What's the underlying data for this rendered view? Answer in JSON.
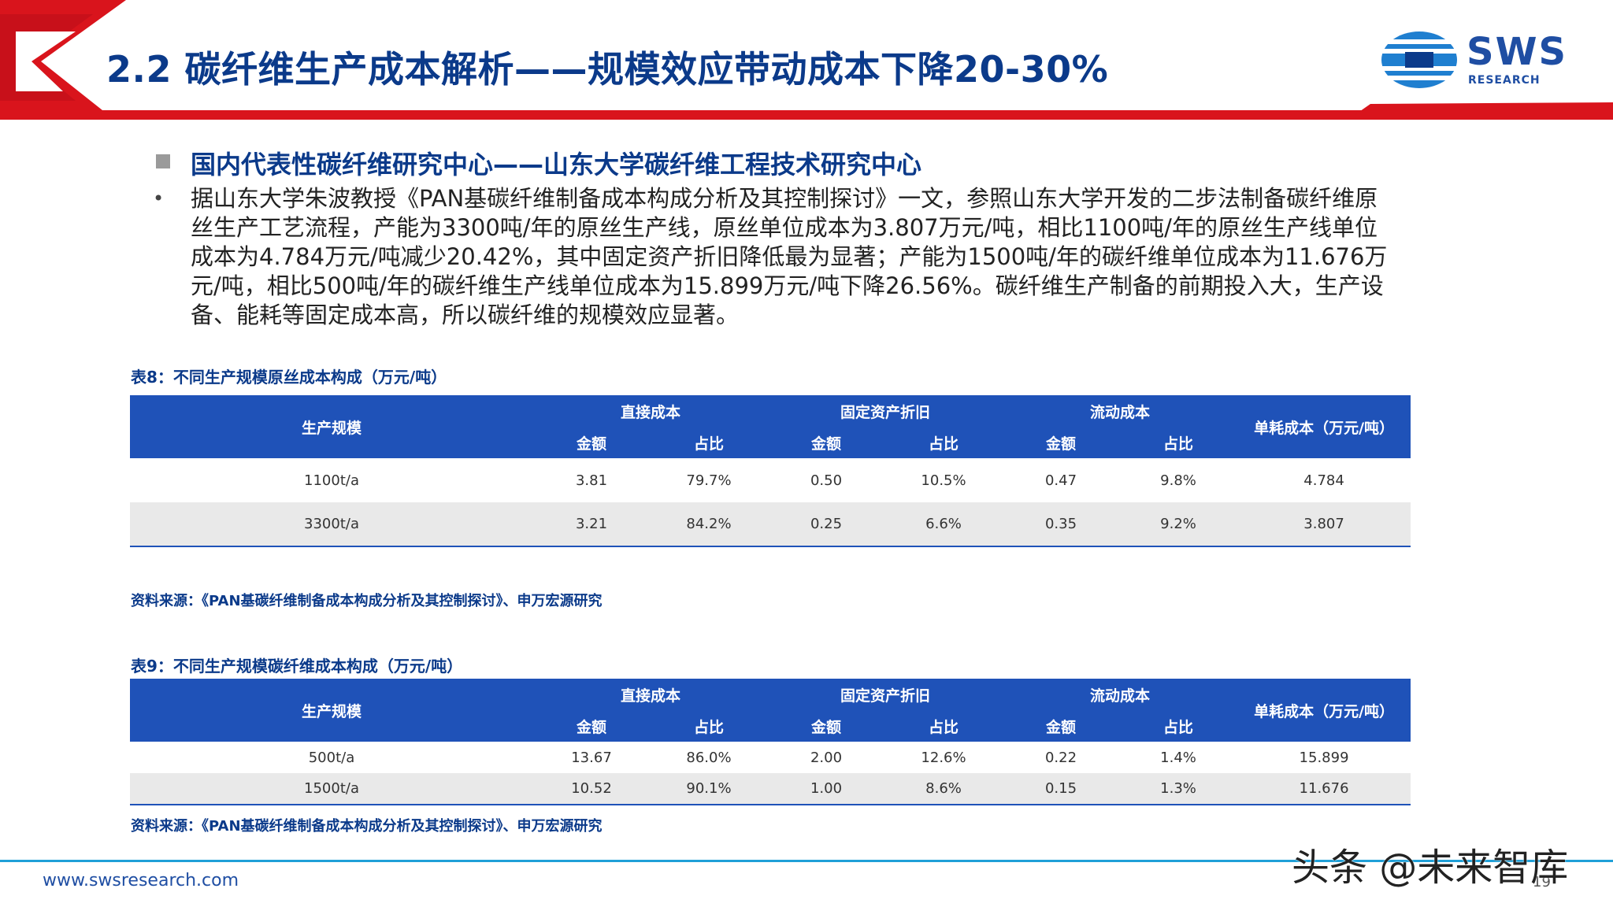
{
  "header": {
    "title": "2.2 碳纤维生产成本解析——规模效应带动成本下降20-30%",
    "logo_text": "SWS",
    "logo_sub": "RESEARCH"
  },
  "section": {
    "heading": "国内代表性碳纤维研究中心——山东大学碳纤维工程技术研究中心",
    "bullet": "•",
    "paragraph": "据山东大学朱波教授《PAN基碳纤维制备成本构成分析及其控制探讨》一文，参照山东大学开发的二步法制备碳纤维原丝生产工艺流程，产能为3300吨/年的原丝生产线，原丝单位成本为3.807万元/吨，相比1100吨/年的原丝生产线单位成本为4.784万元/吨减少20.42%，其中固定资产折旧降低最为显著；产能为1500吨/年的碳纤维单位成本为11.676万元/吨，相比500吨/年的碳纤维生产线单位成本为15.899万元/吨下降26.56%。碳纤维生产制备的前期投入大，生产设备、能耗等固定成本高，所以碳纤维的规模效应显著。"
  },
  "table8": {
    "caption": "表8：不同生产规模原丝成本构成（万元/吨）",
    "h_scale": "生产规模",
    "h_direct": "直接成本",
    "h_fixed": "固定资产折旧",
    "h_flow": "流动成本",
    "h_unit": "单耗成本（万元/吨）",
    "h_amount": "金额",
    "h_ratio": "占比",
    "rows": [
      [
        "1100t/a",
        "3.81",
        "79.7%",
        "0.50",
        "10.5%",
        "0.47",
        "9.8%",
        "4.784"
      ],
      [
        "3300t/a",
        "3.21",
        "84.2%",
        "0.25",
        "6.6%",
        "0.35",
        "9.2%",
        "3.807"
      ]
    ],
    "source": "资料来源：《PAN基碳纤维制备成本构成分析及其控制探讨》、申万宏源研究"
  },
  "table9": {
    "caption": "表9：不同生产规模碳纤维成本构成（万元/吨）",
    "h_scale": "生产规模",
    "h_direct": "直接成本",
    "h_fixed": "固定资产折旧",
    "h_flow": "流动成本",
    "h_unit": "单耗成本（万元/吨）",
    "h_amount": "金额",
    "h_ratio": "占比",
    "rows": [
      [
        "500t/a",
        "13.67",
        "86.0%",
        "2.00",
        "12.6%",
        "0.22",
        "1.4%",
        "15.899"
      ],
      [
        "1500t/a",
        "10.52",
        "90.1%",
        "1.00",
        "8.6%",
        "0.15",
        "1.3%",
        "11.676"
      ]
    ],
    "source": "资料来源：《PAN基碳纤维制备成本构成分析及其控制探讨》、申万宏源研究"
  },
  "footer": {
    "url": "www.swsresearch.com",
    "page": "19",
    "watermark": "头条 @未来智库"
  },
  "colors": {
    "brand_red": "#d9141c",
    "brand_blue": "#1f52b8",
    "title_blue": "#0b3a8a"
  }
}
